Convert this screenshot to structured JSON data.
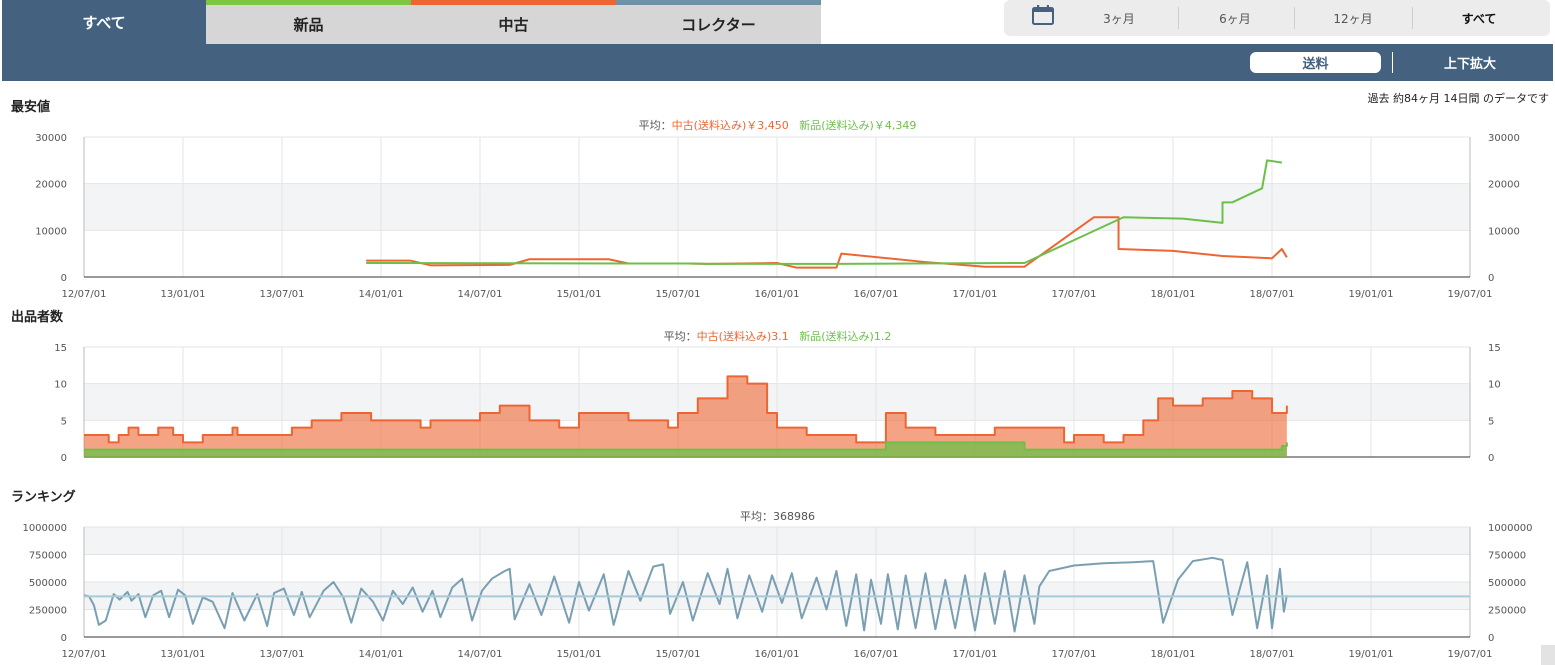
{
  "tabs": [
    {
      "label": "すべて",
      "active": true
    },
    {
      "label": "新品",
      "color": "#7cc644"
    },
    {
      "label": "中古",
      "color": "#ee6534"
    },
    {
      "label": "コレクター",
      "color": "#6e93a7"
    }
  ],
  "range": {
    "icon": "calendar-icon",
    "options": [
      "3ヶ月",
      "6ヶ月",
      "12ヶ月",
      "すべて"
    ],
    "selected": "すべて"
  },
  "toolbar": {
    "shipping": "送料",
    "zoom": "上下拡大"
  },
  "period_note": "過去 約84ヶ月 14日間 のデータです",
  "colors": {
    "used": "#ee6534",
    "new": "#6cc04a",
    "rank": "#7a9fb3",
    "accent": "#44617f"
  },
  "price": {
    "title": "最安値",
    "legend": {
      "prefix": "平均：",
      "used": "中古(送料込み)￥3,450",
      "new": "新品(送料込み)￥4,349"
    }
  },
  "sellers": {
    "title": "出品者数",
    "legend": {
      "prefix": "平均：",
      "used": "中古(送料込み)3.1",
      "new": "新品(送料込み)1.2"
    }
  },
  "ranking": {
    "title": "ランキング",
    "legend": {
      "prefix": "平均：",
      "value": "368986"
    }
  },
  "chart_data": [
    {
      "type": "line",
      "title": "最安値",
      "x_ticks": [
        "12/07/01",
        "13/01/01",
        "13/07/01",
        "14/01/01",
        "14/07/01",
        "15/01/01",
        "15/07/01",
        "16/01/01",
        "16/07/01",
        "17/01/01",
        "17/07/01",
        "18/01/01",
        "18/07/01",
        "19/01/01",
        "19/07/01"
      ],
      "ylim": [
        0,
        30000
      ],
      "y_ticks": [
        0,
        10000,
        20000,
        30000
      ],
      "series": [
        {
          "name": "中古(送料込み)",
          "points": [
            [
              2.85,
              3500
            ],
            [
              3.3,
              3500
            ],
            [
              3.5,
              2500
            ],
            [
              4.3,
              2600
            ],
            [
              4.5,
              3800
            ],
            [
              5.3,
              3800
            ],
            [
              5.5,
              2900
            ],
            [
              6.1,
              2900
            ],
            [
              6.3,
              2800
            ],
            [
              7.0,
              3000
            ],
            [
              7.2,
              2000
            ],
            [
              7.6,
              2000
            ],
            [
              7.65,
              5000
            ],
            [
              8.5,
              3200
            ],
            [
              9.1,
              2200
            ],
            [
              9.5,
              2200
            ],
            [
              10.2,
              12800
            ],
            [
              10.45,
              12800
            ],
            [
              10.45,
              6000
            ],
            [
              11.0,
              5600
            ],
            [
              11.5,
              4500
            ],
            [
              12.0,
              4000
            ],
            [
              12.1,
              6000
            ],
            [
              12.15,
              4200
            ]
          ]
        },
        {
          "name": "新品(送料込み)",
          "points": [
            [
              2.85,
              3000
            ],
            [
              5.5,
              2900
            ],
            [
              6.1,
              2900
            ],
            [
              6.3,
              2800
            ],
            [
              7.6,
              2800
            ],
            [
              9.5,
              3000
            ],
            [
              10.5,
              12800
            ],
            [
              11.1,
              12500
            ],
            [
              11.5,
              11600
            ],
            [
              11.5,
              16000
            ],
            [
              11.6,
              16000
            ],
            [
              11.9,
              19000
            ],
            [
              11.95,
              25000
            ],
            [
              12.1,
              24500
            ]
          ]
        }
      ]
    },
    {
      "type": "area",
      "title": "出品者数",
      "x_ticks": [
        "12/07/01",
        "13/01/01",
        "13/07/01",
        "14/01/01",
        "14/07/01",
        "15/01/01",
        "15/07/01",
        "16/01/01",
        "16/07/01",
        "17/01/01",
        "17/07/01",
        "18/01/01",
        "18/07/01",
        "19/01/01",
        "19/07/01"
      ],
      "ylim": [
        0,
        15
      ],
      "y_ticks": [
        0,
        5,
        10,
        15
      ],
      "series": [
        {
          "name": "中古(送料込み)",
          "points": [
            [
              0,
              3
            ],
            [
              0.2,
              3
            ],
            [
              0.25,
              2
            ],
            [
              0.35,
              3
            ],
            [
              0.45,
              4
            ],
            [
              0.55,
              3
            ],
            [
              0.75,
              4
            ],
            [
              0.9,
              3
            ],
            [
              1.0,
              2
            ],
            [
              1.2,
              3
            ],
            [
              1.5,
              4
            ],
            [
              1.55,
              3
            ],
            [
              2.1,
              4
            ],
            [
              2.3,
              5
            ],
            [
              2.6,
              6
            ],
            [
              2.9,
              5
            ],
            [
              3.4,
              4
            ],
            [
              3.5,
              5
            ],
            [
              4.0,
              6
            ],
            [
              4.2,
              7
            ],
            [
              4.5,
              5
            ],
            [
              4.8,
              4
            ],
            [
              5.0,
              6
            ],
            [
              5.5,
              5
            ],
            [
              5.9,
              4
            ],
            [
              6.0,
              6
            ],
            [
              6.2,
              8
            ],
            [
              6.4,
              8
            ],
            [
              6.5,
              11
            ],
            [
              6.7,
              10
            ],
            [
              6.9,
              6
            ],
            [
              7.0,
              4
            ],
            [
              7.3,
              3
            ],
            [
              7.8,
              2
            ],
            [
              8.05,
              2
            ],
            [
              8.1,
              6
            ],
            [
              8.3,
              4
            ],
            [
              8.6,
              3
            ],
            [
              9.2,
              4
            ],
            [
              9.5,
              4
            ],
            [
              9.9,
              2
            ],
            [
              10.0,
              3
            ],
            [
              10.3,
              2
            ],
            [
              10.5,
              3
            ],
            [
              10.7,
              5
            ],
            [
              10.85,
              8
            ],
            [
              11.0,
              7
            ],
            [
              11.3,
              8
            ],
            [
              11.6,
              9
            ],
            [
              11.8,
              8
            ],
            [
              12.0,
              6
            ],
            [
              12.1,
              6
            ],
            [
              12.15,
              7
            ]
          ]
        },
        {
          "name": "新品(送料込み)",
          "points": [
            [
              0,
              1
            ],
            [
              6.1,
              1
            ],
            [
              7.3,
              1
            ],
            [
              8.05,
              1
            ],
            [
              8.1,
              2
            ],
            [
              9.1,
              2
            ],
            [
              9.5,
              1
            ],
            [
              11.0,
              1
            ],
            [
              11.9,
              1
            ],
            [
              12.0,
              1
            ],
            [
              12.1,
              1.5
            ],
            [
              12.15,
              2
            ]
          ]
        }
      ]
    },
    {
      "type": "line",
      "title": "ランキング",
      "x_ticks": [
        "12/07/01",
        "13/01/01",
        "13/07/01",
        "14/01/01",
        "14/07/01",
        "15/01/01",
        "15/07/01",
        "16/01/01",
        "16/07/01",
        "17/01/01",
        "17/07/01",
        "18/01/01",
        "18/07/01",
        "19/01/01",
        "19/07/01"
      ],
      "ylim": [
        0,
        1000000
      ],
      "y_ticks": [
        0,
        250000,
        500000,
        750000,
        1000000
      ],
      "average": 368986,
      "series": [
        {
          "name": "ランキング",
          "points": [
            [
              0,
              380000
            ],
            [
              0.05,
              370000
            ],
            [
              0.1,
              290000
            ],
            [
              0.15,
              110000
            ],
            [
              0.22,
              150000
            ],
            [
              0.3,
              390000
            ],
            [
              0.36,
              340000
            ],
            [
              0.44,
              410000
            ],
            [
              0.48,
              330000
            ],
            [
              0.55,
              390000
            ],
            [
              0.62,
              180000
            ],
            [
              0.7,
              380000
            ],
            [
              0.78,
              420000
            ],
            [
              0.86,
              180000
            ],
            [
              0.95,
              430000
            ],
            [
              1.02,
              380000
            ],
            [
              1.1,
              120000
            ],
            [
              1.2,
              360000
            ],
            [
              1.3,
              320000
            ],
            [
              1.42,
              80000
            ],
            [
              1.5,
              400000
            ],
            [
              1.62,
              150000
            ],
            [
              1.75,
              390000
            ],
            [
              1.85,
              100000
            ],
            [
              1.92,
              400000
            ],
            [
              2.02,
              440000
            ],
            [
              2.12,
              200000
            ],
            [
              2.2,
              410000
            ],
            [
              2.28,
              180000
            ],
            [
              2.42,
              420000
            ],
            [
              2.52,
              500000
            ],
            [
              2.62,
              360000
            ],
            [
              2.7,
              130000
            ],
            [
              2.8,
              440000
            ],
            [
              2.92,
              320000
            ],
            [
              3.02,
              150000
            ],
            [
              3.12,
              420000
            ],
            [
              3.22,
              300000
            ],
            [
              3.32,
              450000
            ],
            [
              3.42,
              230000
            ],
            [
              3.52,
              420000
            ],
            [
              3.6,
              180000
            ],
            [
              3.72,
              450000
            ],
            [
              3.82,
              530000
            ],
            [
              3.92,
              150000
            ],
            [
              4.02,
              420000
            ],
            [
              4.12,
              530000
            ],
            [
              4.25,
              600000
            ],
            [
              4.3,
              620000
            ],
            [
              4.35,
              160000
            ],
            [
              4.5,
              480000
            ],
            [
              4.62,
              200000
            ],
            [
              4.75,
              550000
            ],
            [
              4.9,
              130000
            ],
            [
              5.0,
              500000
            ],
            [
              5.1,
              240000
            ],
            [
              5.25,
              570000
            ],
            [
              5.35,
              110000
            ],
            [
              5.5,
              600000
            ],
            [
              5.62,
              330000
            ],
            [
              5.75,
              640000
            ],
            [
              5.85,
              660000
            ],
            [
              5.92,
              210000
            ],
            [
              6.05,
              500000
            ],
            [
              6.15,
              150000
            ],
            [
              6.3,
              580000
            ],
            [
              6.42,
              300000
            ],
            [
              6.5,
              620000
            ],
            [
              6.6,
              170000
            ],
            [
              6.72,
              560000
            ],
            [
              6.85,
              230000
            ],
            [
              6.95,
              560000
            ],
            [
              7.05,
              310000
            ],
            [
              7.15,
              580000
            ],
            [
              7.25,
              170000
            ],
            [
              7.4,
              540000
            ],
            [
              7.5,
              250000
            ],
            [
              7.6,
              600000
            ],
            [
              7.7,
              100000
            ],
            [
              7.8,
              570000
            ],
            [
              7.88,
              60000
            ],
            [
              7.95,
              520000
            ],
            [
              8.05,
              120000
            ],
            [
              8.12,
              570000
            ],
            [
              8.22,
              70000
            ],
            [
              8.3,
              560000
            ],
            [
              8.4,
              80000
            ],
            [
              8.5,
              580000
            ],
            [
              8.6,
              70000
            ],
            [
              8.7,
              520000
            ],
            [
              8.8,
              80000
            ],
            [
              8.9,
              560000
            ],
            [
              9.0,
              60000
            ],
            [
              9.1,
              580000
            ],
            [
              9.2,
              120000
            ],
            [
              9.3,
              600000
            ],
            [
              9.4,
              50000
            ],
            [
              9.5,
              560000
            ],
            [
              9.6,
              120000
            ],
            [
              9.65,
              460000
            ],
            [
              9.75,
              600000
            ],
            [
              10.0,
              650000
            ],
            [
              10.3,
              670000
            ],
            [
              10.6,
              680000
            ],
            [
              10.8,
              690000
            ],
            [
              10.9,
              130000
            ],
            [
              11.05,
              520000
            ],
            [
              11.2,
              690000
            ],
            [
              11.4,
              720000
            ],
            [
              11.5,
              700000
            ],
            [
              11.6,
              200000
            ],
            [
              11.75,
              680000
            ],
            [
              11.85,
              80000
            ],
            [
              11.95,
              560000
            ],
            [
              12.0,
              80000
            ],
            [
              12.08,
              620000
            ],
            [
              12.12,
              230000
            ],
            [
              12.15,
              380000
            ]
          ]
        }
      ]
    }
  ]
}
